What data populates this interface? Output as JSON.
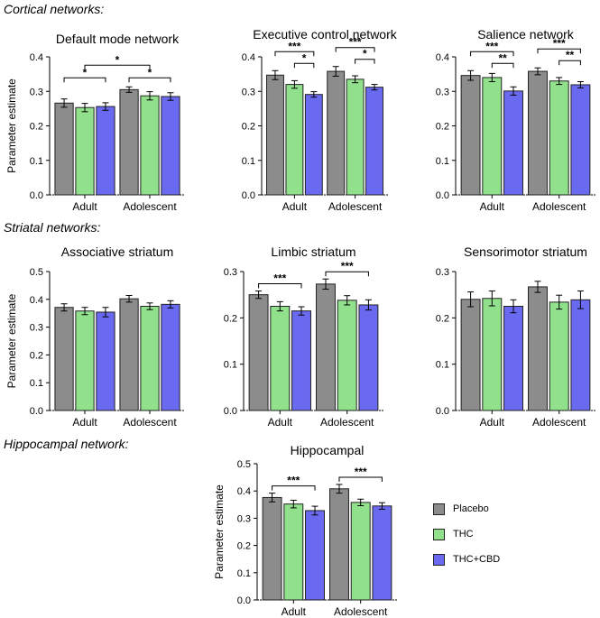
{
  "sections": {
    "cortical": "Cortical networks:",
    "striatal": "Striatal networks:",
    "hippocampal": "Hippocampal network:"
  },
  "legend": [
    {
      "name": "Placebo",
      "color": "#8c8c8c"
    },
    {
      "name": "THC",
      "color": "#90e08c"
    },
    {
      "name": "THC+CBD",
      "color": "#6a6af0"
    }
  ],
  "chart_data": [
    {
      "type": "bar",
      "title": "Default mode network",
      "ylabel": "Parameter estimate",
      "ylim": [
        0,
        0.4
      ],
      "yticks": [
        "0.0",
        "0.1",
        "0.2",
        "0.3",
        "0.4"
      ],
      "categories": [
        "Adult",
        "Adolescent"
      ],
      "series": [
        {
          "name": "Placebo",
          "values": [
            0.266,
            0.305
          ],
          "errors": [
            0.012,
            0.008
          ]
        },
        {
          "name": "THC",
          "values": [
            0.253,
            0.287
          ],
          "errors": [
            0.012,
            0.012
          ]
        },
        {
          "name": "THC+CBD",
          "values": [
            0.256,
            0.285
          ],
          "errors": [
            0.011,
            0.011
          ]
        }
      ],
      "annotations": [
        {
          "label": "*",
          "between": [
            [
              0,
              0
            ],
            [
              0,
              2
            ]
          ],
          "level": 0
        },
        {
          "label": "*",
          "between": [
            [
              1,
              0
            ],
            [
              1,
              2
            ]
          ],
          "level": 0
        },
        {
          "label": "*",
          "between": [
            [
              0,
              1
            ],
            [
              1,
              1
            ]
          ],
          "level": 1
        }
      ]
    },
    {
      "type": "bar",
      "title": "Executive control network",
      "ylabel": "",
      "ylim": [
        0,
        0.4
      ],
      "yticks": [
        "0.0",
        "0.1",
        "0.2",
        "0.3",
        "0.4"
      ],
      "categories": [
        "Adult",
        "Adolescent"
      ],
      "series": [
        {
          "name": "Placebo",
          "values": [
            0.347,
            0.358
          ],
          "errors": [
            0.013,
            0.014
          ]
        },
        {
          "name": "THC",
          "values": [
            0.32,
            0.335
          ],
          "errors": [
            0.011,
            0.01
          ]
        },
        {
          "name": "THC+CBD",
          "values": [
            0.291,
            0.312
          ],
          "errors": [
            0.008,
            0.008
          ]
        }
      ],
      "annotations": [
        {
          "label": "*",
          "between": [
            [
              0,
              1
            ],
            [
              0,
              2
            ]
          ],
          "level": 0
        },
        {
          "label": "***",
          "between": [
            [
              0,
              0
            ],
            [
              0,
              2
            ]
          ],
          "level": 1
        },
        {
          "label": "*",
          "between": [
            [
              1,
              1
            ],
            [
              1,
              2
            ]
          ],
          "level": 0
        },
        {
          "label": "***",
          "between": [
            [
              1,
              0
            ],
            [
              1,
              2
            ]
          ],
          "level": 1
        }
      ]
    },
    {
      "type": "bar",
      "title": "Salience network",
      "ylabel": "",
      "ylim": [
        0,
        0.4
      ],
      "yticks": [
        "0.0",
        "0.1",
        "0.2",
        "0.3",
        "0.4"
      ],
      "categories": [
        "Adult",
        "Adolescent"
      ],
      "series": [
        {
          "name": "Placebo",
          "values": [
            0.346,
            0.358
          ],
          "errors": [
            0.014,
            0.01
          ]
        },
        {
          "name": "THC",
          "values": [
            0.34,
            0.33
          ],
          "errors": [
            0.012,
            0.01
          ]
        },
        {
          "name": "THC+CBD",
          "values": [
            0.301,
            0.319
          ],
          "errors": [
            0.012,
            0.009
          ]
        }
      ],
      "annotations": [
        {
          "label": "**",
          "between": [
            [
              0,
              1
            ],
            [
              0,
              2
            ]
          ],
          "level": 0
        },
        {
          "label": "***",
          "between": [
            [
              0,
              0
            ],
            [
              0,
              2
            ]
          ],
          "level": 1
        },
        {
          "label": "**",
          "between": [
            [
              1,
              1
            ],
            [
              1,
              2
            ]
          ],
          "level": 0
        },
        {
          "label": "***",
          "between": [
            [
              1,
              0
            ],
            [
              1,
              2
            ]
          ],
          "level": 1
        }
      ]
    },
    {
      "type": "bar",
      "title": "Associative striatum",
      "ylabel": "Parameter estimate",
      "ylim": [
        0,
        0.5
      ],
      "yticks": [
        "0.0",
        "0.1",
        "0.2",
        "0.3",
        "0.4",
        "0.5"
      ],
      "categories": [
        "Adult",
        "Adolescent"
      ],
      "series": [
        {
          "name": "Placebo",
          "values": [
            0.371,
            0.402
          ],
          "errors": [
            0.013,
            0.012
          ]
        },
        {
          "name": "THC",
          "values": [
            0.358,
            0.375
          ],
          "errors": [
            0.013,
            0.012
          ]
        },
        {
          "name": "THC+CBD",
          "values": [
            0.354,
            0.382
          ],
          "errors": [
            0.017,
            0.013
          ]
        }
      ],
      "annotations": []
    },
    {
      "type": "bar",
      "title": "Limbic striatum",
      "ylabel": "",
      "ylim": [
        0,
        0.3
      ],
      "yticks": [
        "0.0",
        "0.1",
        "0.2",
        "0.3"
      ],
      "categories": [
        "Adult",
        "Adolescent"
      ],
      "series": [
        {
          "name": "Placebo",
          "values": [
            0.25,
            0.273
          ],
          "errors": [
            0.008,
            0.011
          ]
        },
        {
          "name": "THC",
          "values": [
            0.225,
            0.238
          ],
          "errors": [
            0.01,
            0.01
          ]
        },
        {
          "name": "THC+CBD",
          "values": [
            0.215,
            0.228
          ],
          "errors": [
            0.009,
            0.011
          ]
        }
      ],
      "annotations": [
        {
          "label": "***",
          "between": [
            [
              0,
              0
            ],
            [
              0,
              2
            ]
          ],
          "level": 0
        },
        {
          "label": "***",
          "between": [
            [
              1,
              0
            ],
            [
              1,
              2
            ]
          ],
          "level": 0
        }
      ]
    },
    {
      "type": "bar",
      "title": "Sensorimotor striatum",
      "ylabel": "",
      "ylim": [
        0,
        0.3
      ],
      "yticks": [
        "0.0",
        "0.1",
        "0.2",
        "0.3"
      ],
      "categories": [
        "Adult",
        "Adolescent"
      ],
      "series": [
        {
          "name": "Placebo",
          "values": [
            0.24,
            0.267
          ],
          "errors": [
            0.016,
            0.012
          ]
        },
        {
          "name": "THC",
          "values": [
            0.242,
            0.234
          ],
          "errors": [
            0.016,
            0.015
          ]
        },
        {
          "name": "THC+CBD",
          "values": [
            0.225,
            0.239
          ],
          "errors": [
            0.014,
            0.019
          ]
        }
      ],
      "annotations": []
    },
    {
      "type": "bar",
      "title": "Hippocampal",
      "ylabel": "Parameter estimate",
      "ylim": [
        0,
        0.5
      ],
      "yticks": [
        "0.0",
        "0.1",
        "0.2",
        "0.3",
        "0.4",
        "0.5"
      ],
      "categories": [
        "Adult",
        "Adolescent"
      ],
      "series": [
        {
          "name": "Placebo",
          "values": [
            0.376,
            0.408
          ],
          "errors": [
            0.016,
            0.016
          ]
        },
        {
          "name": "THC",
          "values": [
            0.352,
            0.358
          ],
          "errors": [
            0.014,
            0.012
          ]
        },
        {
          "name": "THC+CBD",
          "values": [
            0.328,
            0.345
          ],
          "errors": [
            0.016,
            0.012
          ]
        }
      ],
      "annotations": [
        {
          "label": "***",
          "between": [
            [
              0,
              0
            ],
            [
              0,
              2
            ]
          ],
          "level": 0
        },
        {
          "label": "***",
          "between": [
            [
              1,
              0
            ],
            [
              1,
              2
            ]
          ],
          "level": 0
        }
      ]
    }
  ]
}
